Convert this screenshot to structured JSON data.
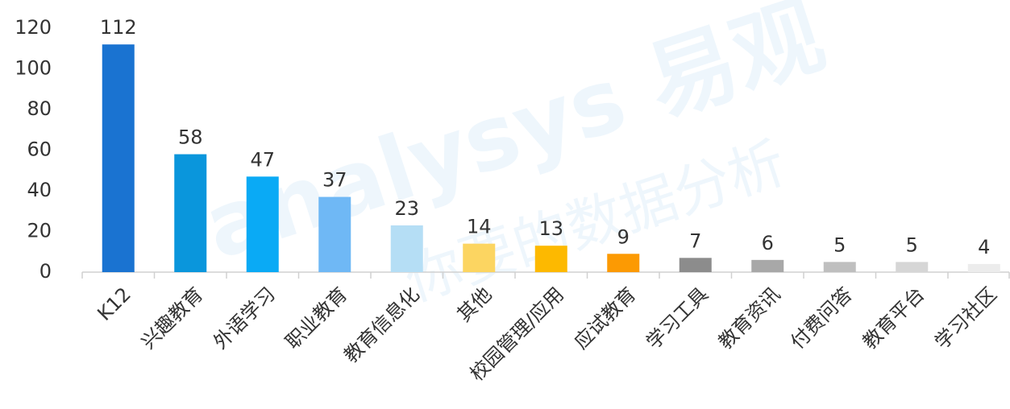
{
  "chart_data": {
    "type": "bar",
    "categories": [
      "K12",
      "兴趣教育",
      "外语学习",
      "职业教育",
      "教育信息化",
      "其他",
      "校园管理/应用",
      "应试教育",
      "学习工具",
      "教育资讯",
      "付费问答",
      "教育平台",
      "学习社区"
    ],
    "values": [
      112,
      58,
      47,
      37,
      23,
      14,
      13,
      9,
      7,
      6,
      5,
      5,
      4
    ],
    "colors": [
      "#1a73d1",
      "#0a96dc",
      "#0aaaf5",
      "#6fb8f5",
      "#b5def5",
      "#fcd561",
      "#fdb900",
      "#fc9a03",
      "#8c8c8c",
      "#a8a8a8",
      "#bfbfbf",
      "#d6d6d6",
      "#ececec"
    ],
    "ylim": [
      0,
      120
    ],
    "yticks": [
      0,
      20,
      40,
      60,
      80,
      100,
      120
    ],
    "grid": false,
    "watermark": [
      "analysys 易观",
      "你要的数据分析"
    ]
  }
}
